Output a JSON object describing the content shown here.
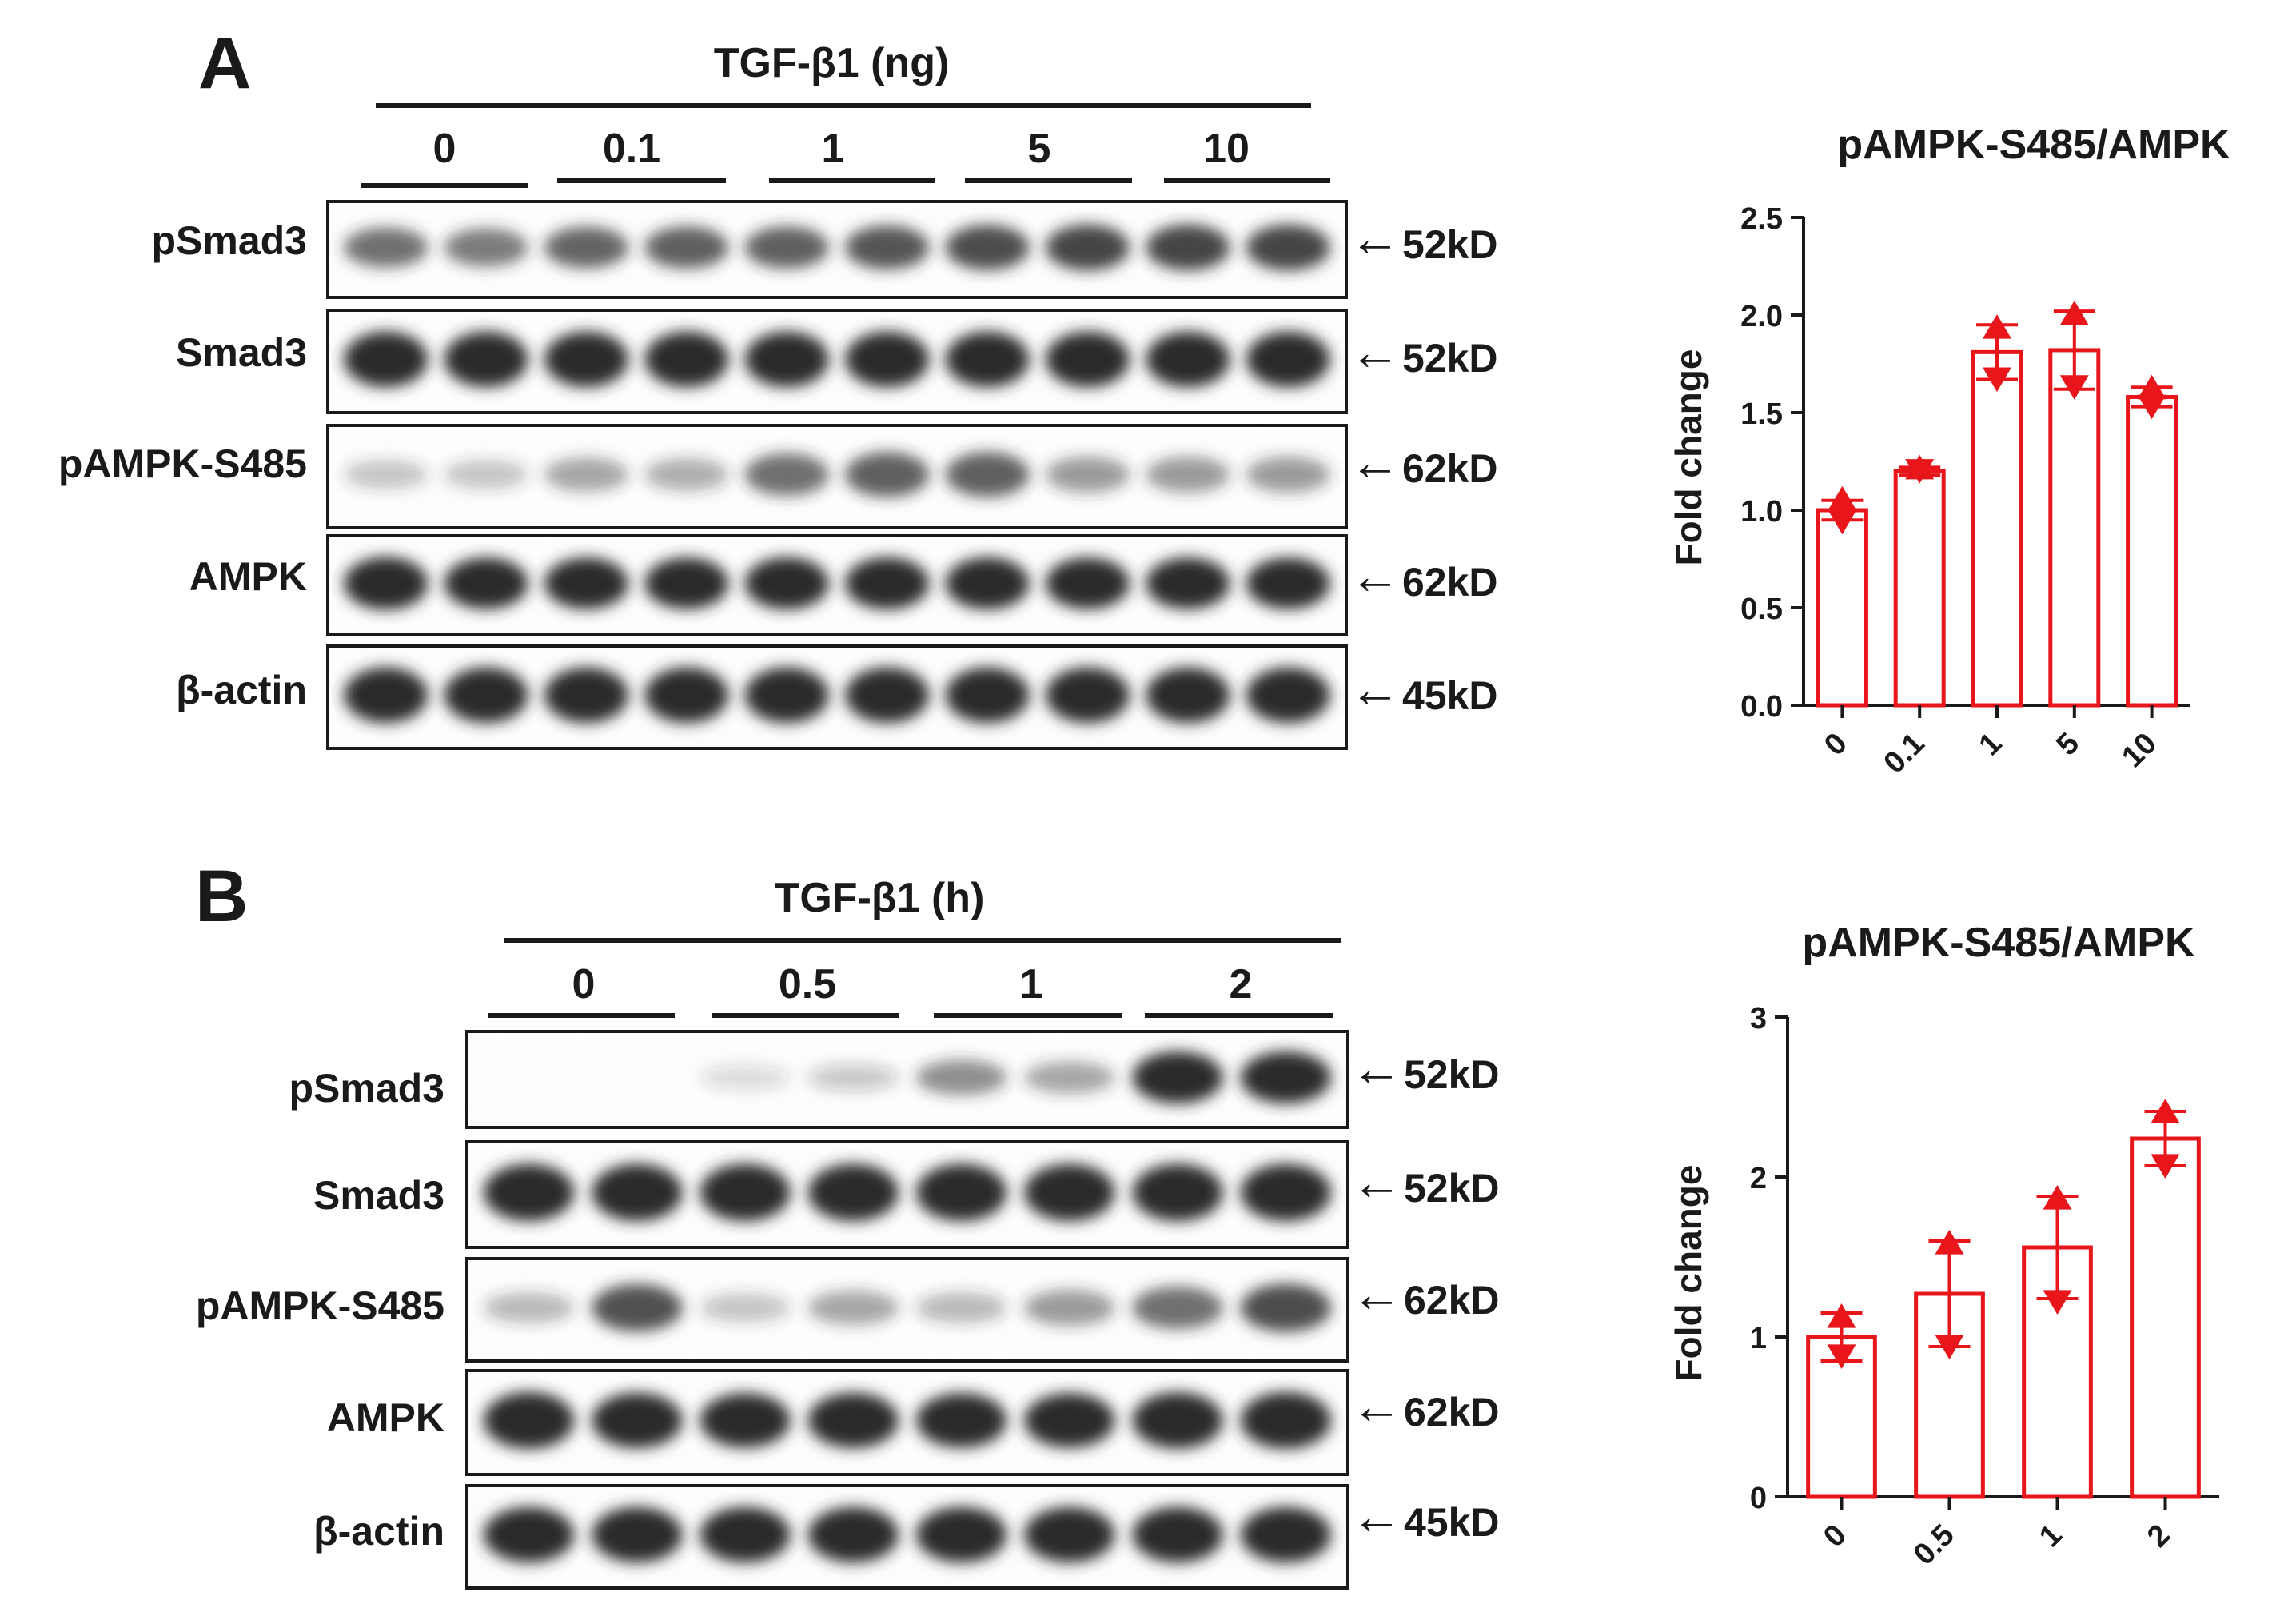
{
  "colors": {
    "bar": "#e8161b",
    "ink": "#1a1a1a",
    "band": "#2a2a2a"
  },
  "panels": [
    {
      "letter": "A",
      "treatment": "TGF-β1 (ng)",
      "groups": [
        "0",
        "0.1",
        "1",
        "5",
        "10"
      ],
      "rows": [
        {
          "label": "pSmad3",
          "marker": "52kD",
          "intensity": [
            0.55,
            0.5,
            0.6,
            0.62,
            0.62,
            0.68,
            0.72,
            0.75,
            0.75,
            0.75
          ]
        },
        {
          "label": "Smad3",
          "marker": "52kD",
          "intensity": [
            0.95,
            0.95,
            0.95,
            0.95,
            0.95,
            0.95,
            0.95,
            0.95,
            0.95,
            0.95
          ]
        },
        {
          "label": "pAMPK-S485",
          "marker": "62kD",
          "intensity": [
            0.15,
            0.15,
            0.3,
            0.25,
            0.55,
            0.62,
            0.62,
            0.35,
            0.35,
            0.35
          ]
        },
        {
          "label": "AMPK",
          "marker": "62kD",
          "intensity": [
            0.92,
            0.88,
            0.88,
            0.88,
            0.9,
            0.9,
            0.9,
            0.88,
            0.88,
            0.88
          ]
        },
        {
          "label": "β-actin",
          "marker": "45kD",
          "intensity": [
            0.95,
            0.95,
            0.95,
            0.95,
            0.95,
            0.95,
            0.95,
            0.95,
            0.95,
            0.95
          ]
        }
      ]
    },
    {
      "letter": "B",
      "treatment": "TGF-β1 (h)",
      "groups": [
        "0",
        "0.5",
        "1",
        "2"
      ],
      "rows": [
        {
          "label": "pSmad3",
          "marker": "52kD",
          "intensity": [
            0.0,
            0.0,
            0.04,
            0.12,
            0.4,
            0.3,
            0.95,
            0.95
          ]
        },
        {
          "label": "Smad3",
          "marker": "52kD",
          "intensity": [
            0.95,
            0.95,
            0.95,
            0.95,
            0.95,
            0.95,
            0.95,
            0.95
          ]
        },
        {
          "label": "pAMPK-S485",
          "marker": "62kD",
          "intensity": [
            0.2,
            0.7,
            0.15,
            0.3,
            0.2,
            0.35,
            0.55,
            0.72
          ]
        },
        {
          "label": "AMPK",
          "marker": "62kD",
          "intensity": [
            0.97,
            0.92,
            0.9,
            0.92,
            0.9,
            0.9,
            0.95,
            0.97
          ]
        },
        {
          "label": "β-actin",
          "marker": "45kD",
          "intensity": [
            0.95,
            0.95,
            0.95,
            0.95,
            0.95,
            0.95,
            0.95,
            0.95
          ]
        }
      ]
    }
  ],
  "chart_data": [
    {
      "type": "bar",
      "title": "pAMPK-S485/AMPK",
      "ylabel": "Fold change",
      "xlabel": "",
      "categories": [
        "0",
        "0.1",
        "1",
        "5",
        "10"
      ],
      "values": [
        1.0,
        1.2,
        1.81,
        1.82,
        1.58
      ],
      "error": [
        0.05,
        0.02,
        0.14,
        0.2,
        0.05
      ],
      "points": [
        [
          1.05,
          0.95
        ],
        [
          1.21,
          1.21
        ],
        [
          1.93,
          1.68
        ],
        [
          2.0,
          1.64
        ],
        [
          1.62,
          1.54
        ]
      ],
      "point_marker": "triangle-up/down",
      "ylim": [
        0,
        2.5
      ],
      "yticks": [
        "0.0",
        "0.5",
        "1.0",
        "1.5",
        "2.0",
        "2.5"
      ]
    },
    {
      "type": "bar",
      "title": "pAMPK-S485/AMPK",
      "ylabel": "Fold change",
      "xlabel": "",
      "categories": [
        "0",
        "0.5",
        "1",
        "2"
      ],
      "values": [
        1.0,
        1.27,
        1.56,
        2.24
      ],
      "error": [
        0.15,
        0.33,
        0.32,
        0.17
      ],
      "points": [
        [
          1.12,
          0.89
        ],
        [
          1.58,
          0.95
        ],
        [
          1.86,
          1.23
        ],
        [
          2.4,
          2.08
        ]
      ],
      "point_marker": "triangle-up/down",
      "ylim": [
        0,
        3
      ],
      "yticks": [
        "0",
        "1",
        "2",
        "3"
      ]
    }
  ]
}
